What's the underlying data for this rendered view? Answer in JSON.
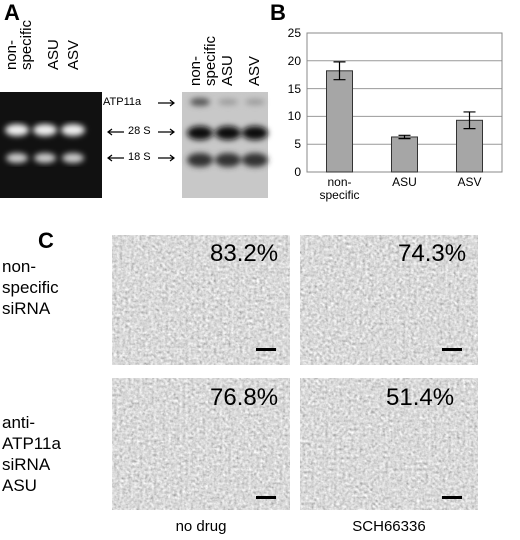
{
  "panel_labels": [
    "A",
    "B",
    "C"
  ],
  "panel_a": {
    "left_lanes": [
      "non-specific",
      "ASU",
      "ASV"
    ],
    "right_lanes": [
      "non-specific",
      "ASU",
      "ASV"
    ],
    "markers": [
      "ATP11a",
      "28 S",
      "18 S"
    ]
  },
  "chart_data": {
    "type": "bar",
    "categories": [
      "non-specific",
      "ASU",
      "ASV"
    ],
    "values": [
      18.2,
      6.3,
      9.3
    ],
    "errors": [
      1.6,
      0.3,
      1.5
    ],
    "color": "#a6a6a6",
    "ylim": [
      0,
      25
    ],
    "yticks": [
      0,
      5,
      10,
      15,
      20,
      25
    ],
    "grid": true
  },
  "panel_c": {
    "rows": [
      "non-specific siRNA",
      "anti-ATP11a siRNA ASU"
    ],
    "columns": [
      "no drug",
      "SCH66336"
    ],
    "percentages": [
      [
        "83.2%",
        "74.3%"
      ],
      [
        "76.8%",
        "51.4%"
      ]
    ]
  }
}
